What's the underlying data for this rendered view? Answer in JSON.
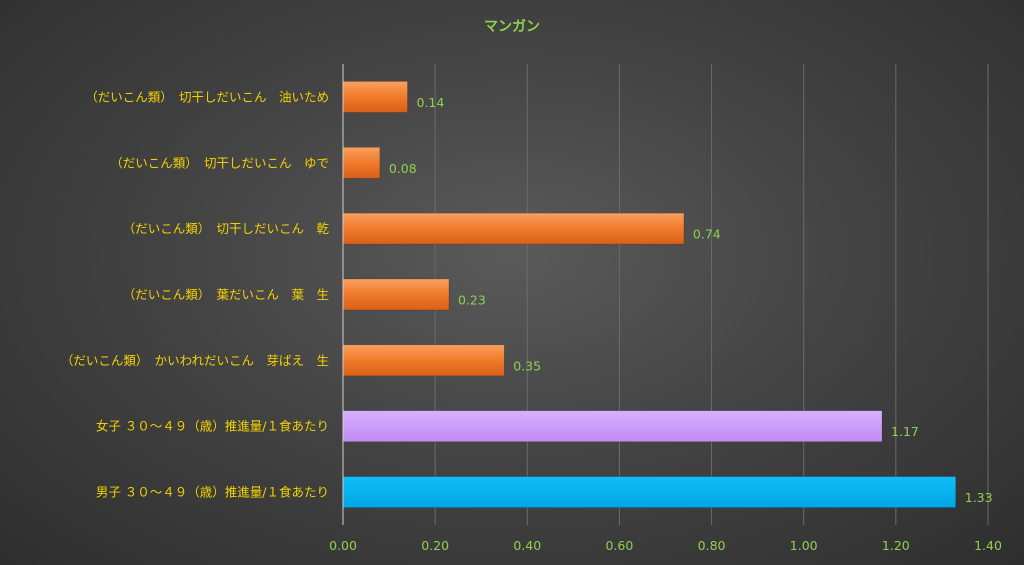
{
  "chart_data": {
    "type": "bar",
    "orientation": "horizontal",
    "title": "マンガン",
    "categories": [
      "（だいこん類）　切干しだいこん　油いため",
      "（だいこん類）　切干しだいこん　ゆで",
      "（だいこん類）　切干しだいこん　乾",
      "（だいこん類）　葉だいこん　葉　生",
      "（だいこん類）　かいわれだいこん　芽ばえ　生",
      "女子 ３０～４９（歳）推進量/１食あたり",
      "男子 ３０～４９（歳）推進量/１食あたり"
    ],
    "values": [
      0.14,
      0.08,
      0.74,
      0.23,
      0.35,
      1.17,
      1.33
    ],
    "value_labels": [
      "0.14",
      "0.08",
      "0.74",
      "0.23",
      "0.35",
      "1.17",
      "1.33"
    ],
    "bar_colors": [
      "#f07a2a",
      "#f07a2a",
      "#f07a2a",
      "#f07a2a",
      "#f07a2a",
      "#cc99ff",
      "#00b0f0"
    ],
    "xlim": [
      0,
      1.4
    ],
    "xticks": [
      0,
      0.2,
      0.4,
      0.6,
      0.8,
      1.0,
      1.2,
      1.4
    ],
    "xtick_labels": [
      "0.00",
      "0.20",
      "0.40",
      "0.60",
      "0.80",
      "1.00",
      "1.20",
      "1.40"
    ],
    "grid": true,
    "legend": "none"
  },
  "colors": {
    "title": "#8fd14f",
    "category_labels": "#f2d200",
    "tick_labels": "#8fd14f",
    "data_labels": "#8fd14f"
  }
}
